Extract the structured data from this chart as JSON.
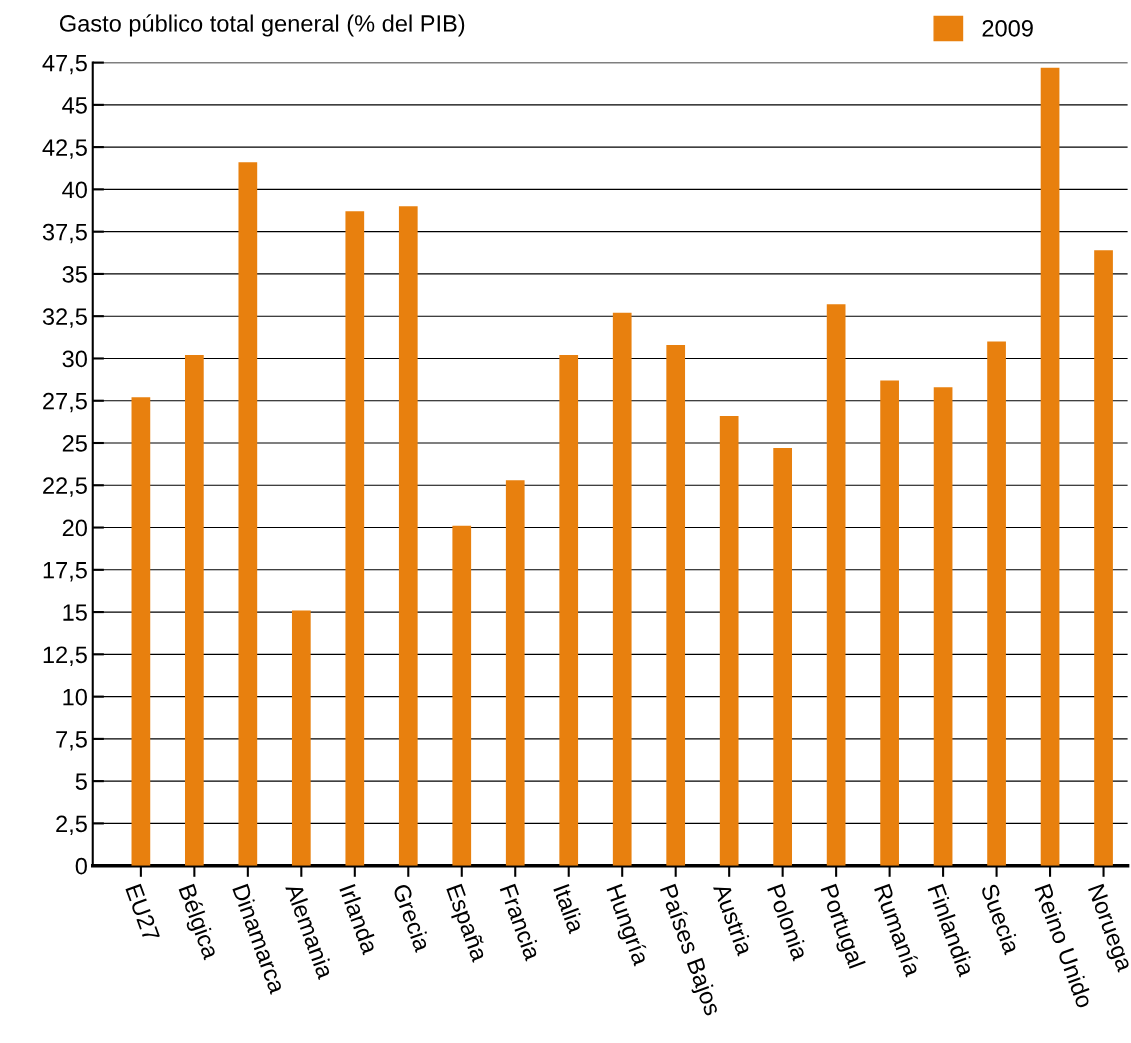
{
  "chart_data": {
    "type": "bar",
    "ylabel": "Gasto público total general (% del PIB)",
    "categories": [
      "EU27",
      "Bélgica",
      "Dinamarca",
      "Alemania",
      "Irlanda",
      "Grecia",
      "España",
      "Francia",
      "Italia",
      "Hungría",
      "Países Bajos",
      "Austria",
      "Polonia",
      "Portugal",
      "Rumanía",
      "Finlandia",
      "Suecia",
      "Reino Unido",
      "Noruega"
    ],
    "series": [
      {
        "name": "2009",
        "color": "#e8800e",
        "values": [
          27.7,
          30.2,
          41.6,
          15.1,
          38.7,
          39.0,
          20.1,
          22.8,
          30.2,
          32.7,
          30.8,
          26.6,
          24.7,
          33.2,
          28.7,
          28.3,
          31.0,
          47.2,
          36.4
        ]
      }
    ],
    "ylim": [
      0,
      47.5
    ],
    "yticks": [
      0,
      {
        "value": 2.5,
        "label": "2,5"
      },
      5,
      {
        "value": 7.5,
        "label": "7,5"
      },
      10,
      {
        "value": 12.5,
        "label": "12,5"
      },
      15,
      {
        "value": 17.5,
        "label": "17,5"
      },
      20,
      {
        "value": 22.5,
        "label": "22,5"
      },
      25,
      {
        "value": 27.5,
        "label": "27,5"
      },
      30,
      {
        "value": 32.5,
        "label": "32,5"
      },
      35,
      {
        "value": 37.5,
        "label": "37,5"
      },
      40,
      {
        "value": 42.5,
        "label": "42,5"
      },
      45,
      {
        "value": 47.5,
        "label": "47,5"
      }
    ],
    "grid": "y",
    "legend": "top right"
  }
}
